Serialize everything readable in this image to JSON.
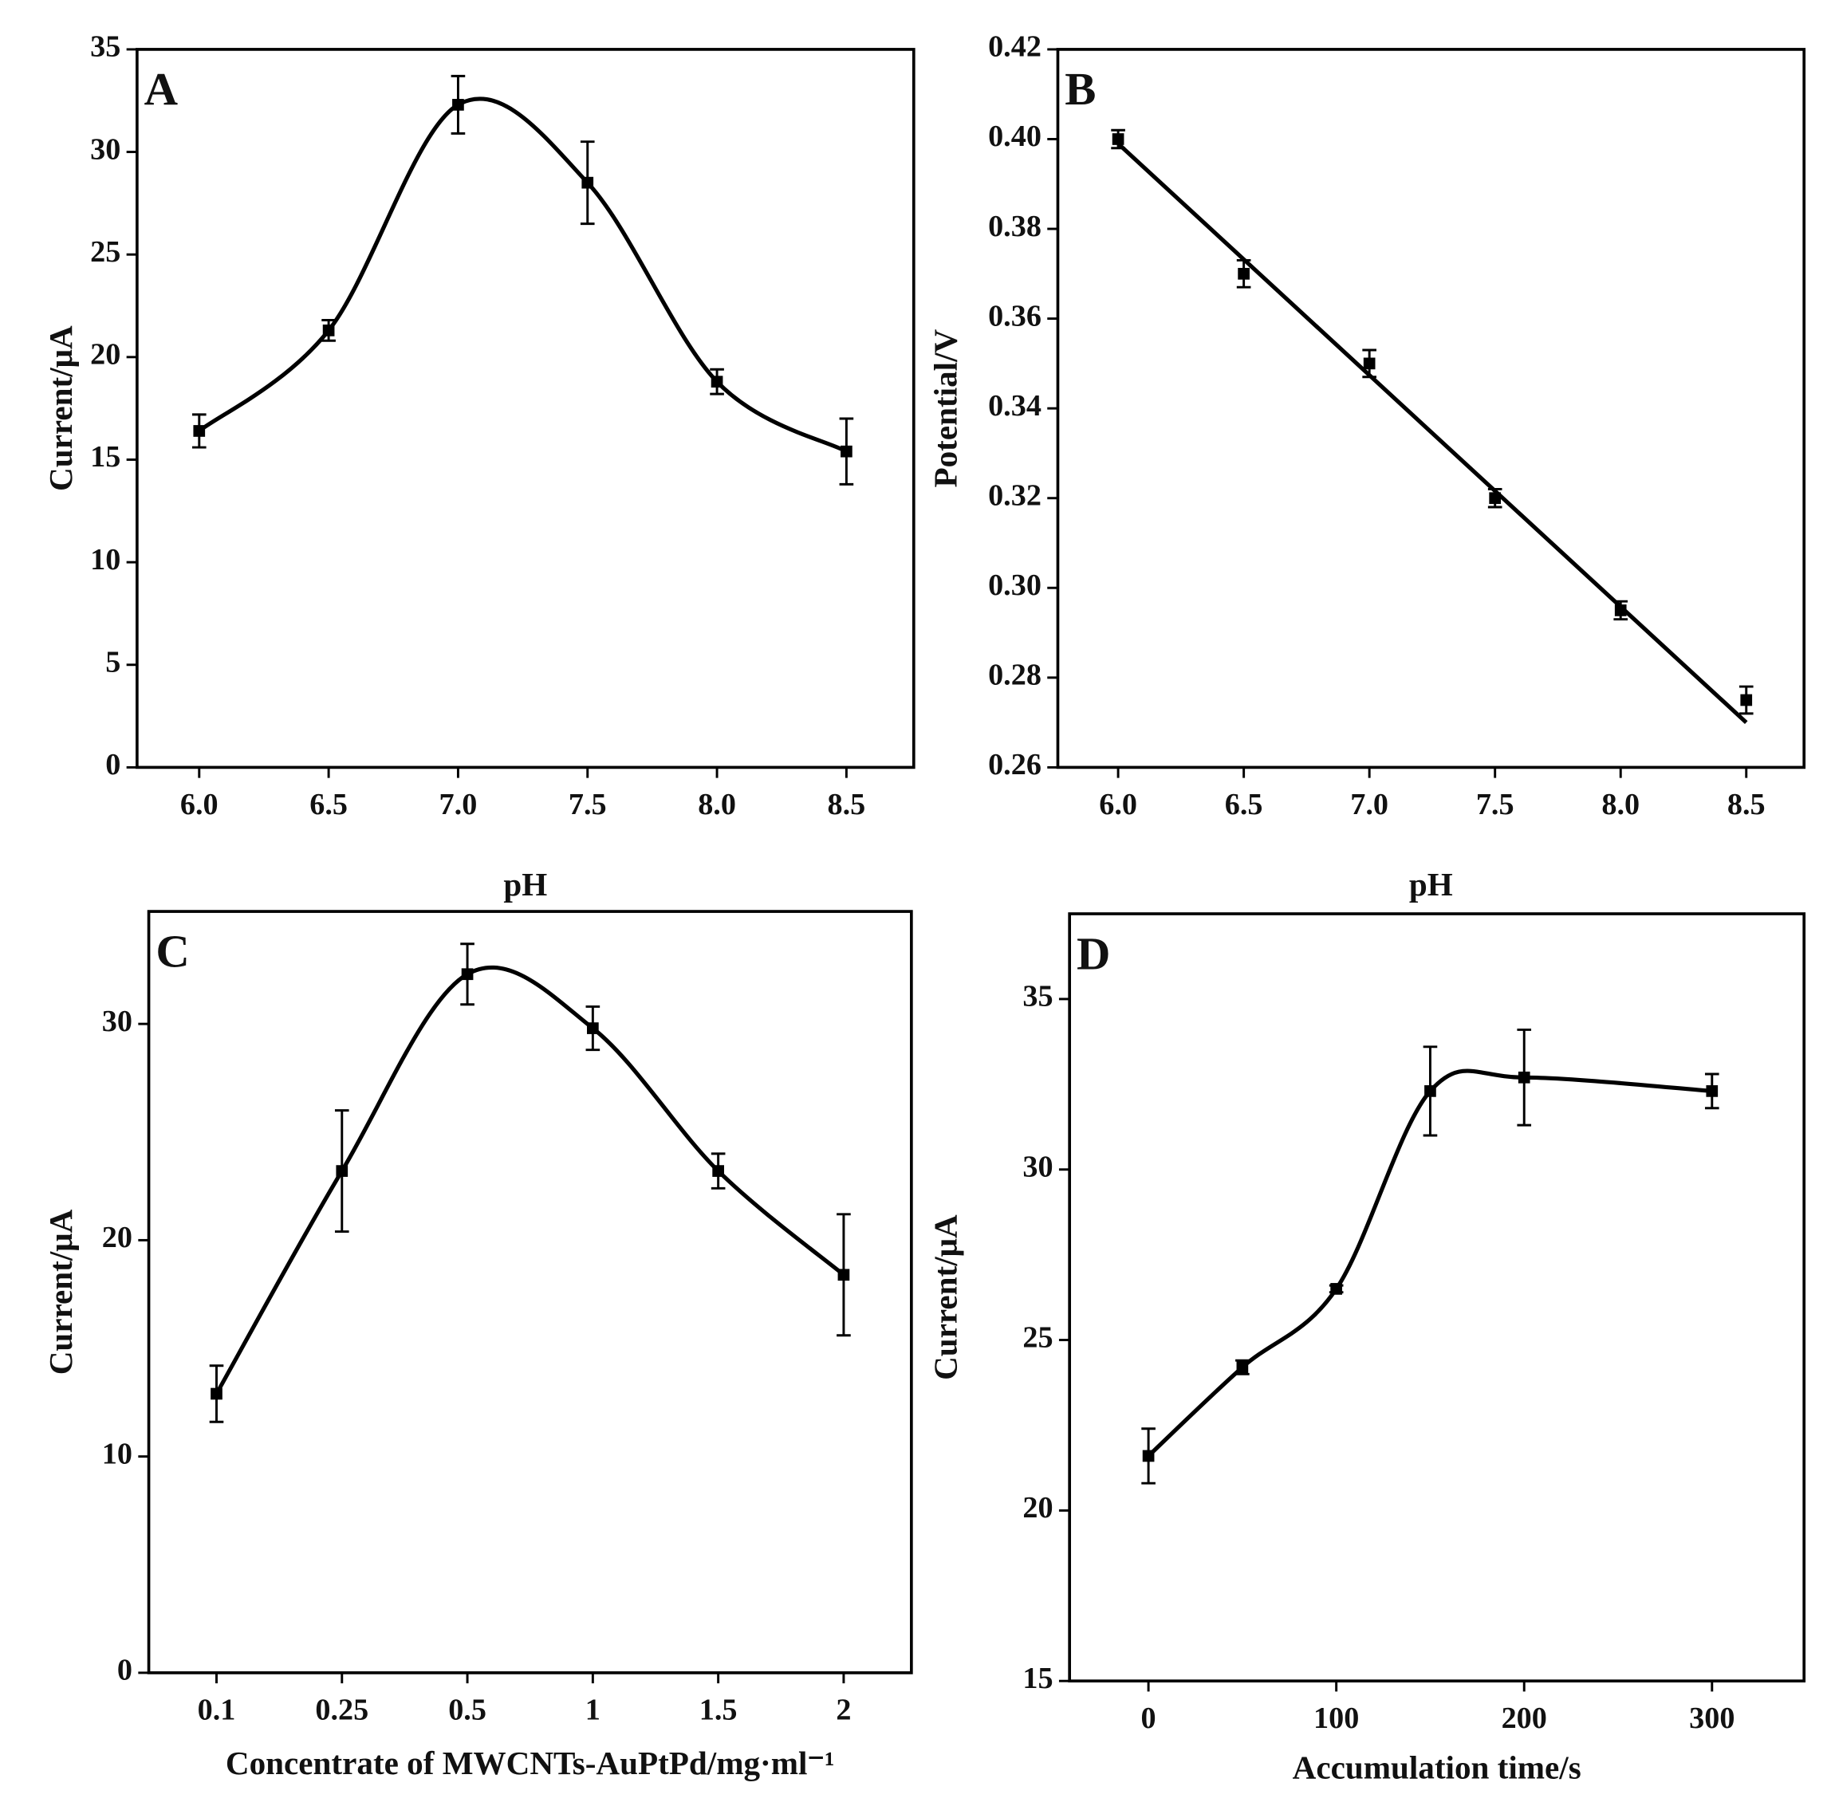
{
  "chart_data": [
    {
      "type": "line",
      "panel_label": "A",
      "x_label": "pH",
      "y_label": "Current/μA",
      "color": "#000000",
      "x": [
        6,
        6.5,
        7,
        7.5,
        8,
        8.5
      ],
      "values": [
        16.4,
        21.3,
        32.3,
        28.5,
        18.8,
        15.4
      ],
      "errors": [
        0.8,
        0.5,
        1.4,
        2.0,
        0.6,
        1.6
      ],
      "xlim": [
        5.76,
        8.76
      ],
      "xticks": [
        {
          "value": 6,
          "label": "6.0"
        },
        6.5,
        {
          "value": 7,
          "label": "7.0"
        },
        7.5,
        {
          "value": 8,
          "label": "8.0"
        },
        8.5
      ],
      "ylim": [
        0,
        35
      ],
      "yticks": [
        0,
        5,
        10,
        15,
        20,
        25,
        30,
        35
      ]
    },
    {
      "type": "scatter",
      "panel_label": "B",
      "x_label": "pH",
      "y_label": "Potential/V",
      "color": "#000000",
      "x": [
        6,
        6.5,
        7,
        7.5,
        8,
        8.5
      ],
      "values": [
        0.4,
        0.37,
        0.35,
        0.32,
        0.295,
        0.275
      ],
      "errors": [
        0.002,
        0.003,
        0.003,
        0.002,
        0.002,
        0.003
      ],
      "fit_line": {
        "x": [
          6,
          8.5
        ],
        "values": [
          0.399,
          0.27
        ]
      },
      "xlim": [
        5.76,
        8.73
      ],
      "xticks": [
        {
          "value": 6,
          "label": "6.0"
        },
        6.5,
        {
          "value": 7,
          "label": "7.0"
        },
        7.5,
        {
          "value": 8,
          "label": "8.0"
        },
        8.5
      ],
      "ylim": [
        0.26,
        0.42
      ],
      "yticks": [
        0.26,
        0.28,
        {
          "value": 0.3,
          "label": "0.30"
        },
        0.32,
        0.34,
        0.36,
        0.38,
        {
          "value": 0.4,
          "label": "0.40"
        },
        0.42
      ]
    },
    {
      "type": "line",
      "panel_label": "C",
      "x_label": "Concentrate of  MWCNTs-AuPtPd/mg·ml⁻¹",
      "y_label": "Current/μA",
      "color": "#000000",
      "categories": [
        "0.1",
        "0.25",
        "0.5",
        "1",
        "1.5",
        "2"
      ],
      "values": [
        12.9,
        23.2,
        32.3,
        29.8,
        23.2,
        18.4
      ],
      "errors": [
        1.3,
        2.8,
        1.4,
        1.0,
        0.8,
        2.8
      ],
      "ylim": [
        0,
        35.2
      ],
      "yticks": [
        0,
        10,
        20,
        30
      ]
    },
    {
      "type": "line",
      "panel_label": "D",
      "x_label": "Accumulation time/s",
      "y_label": "Current/μA",
      "color": "#000000",
      "x": [
        0,
        50,
        100,
        150,
        200,
        300
      ],
      "values": [
        21.6,
        24.2,
        26.5,
        32.3,
        32.7,
        32.3
      ],
      "errors": [
        0.8,
        0.2,
        0.1,
        1.3,
        1.4,
        0.5
      ],
      "xlim": [
        -42,
        349
      ],
      "xticks": [
        0,
        100,
        200,
        300
      ],
      "ylim": [
        15,
        37.5
      ],
      "yticks": [
        15,
        20,
        25,
        30,
        35
      ]
    }
  ]
}
